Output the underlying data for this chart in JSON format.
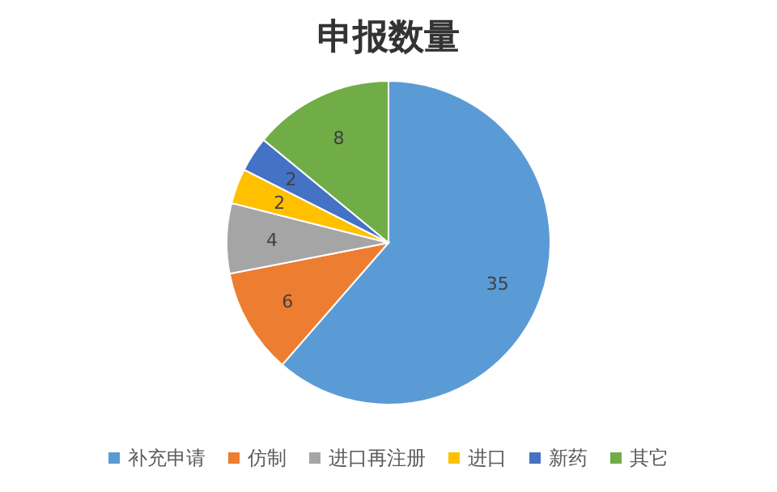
{
  "chart_data": {
    "type": "pie",
    "title": "申报数量",
    "categories": [
      "补充申请",
      "仿制",
      "进口再注册",
      "进口",
      "新药",
      "其它"
    ],
    "values": [
      35,
      6,
      4,
      2,
      2,
      8
    ],
    "colors": [
      "#5b9bd5",
      "#ed7d31",
      "#a5a5a5",
      "#ffc000",
      "#4472c4",
      "#70ad47"
    ],
    "data_labels": true,
    "legend": "bottom"
  }
}
